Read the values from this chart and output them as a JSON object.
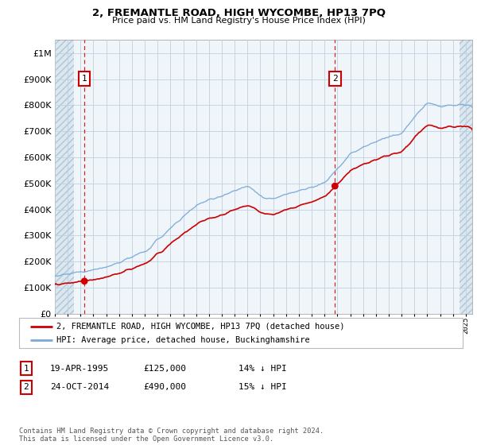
{
  "title1": "2, FREMANTLE ROAD, HIGH WYCOMBE, HP13 7PQ",
  "title2": "Price paid vs. HM Land Registry's House Price Index (HPI)",
  "ylim": [
    0,
    1050000
  ],
  "yticks": [
    0,
    100000,
    200000,
    300000,
    400000,
    500000,
    600000,
    700000,
    800000,
    900000,
    1000000
  ],
  "ytick_labels": [
    "£0",
    "£100K",
    "£200K",
    "£300K",
    "£400K",
    "£500K",
    "£600K",
    "£700K",
    "£800K",
    "£900K",
    "£1M"
  ],
  "sale1_year": 1995.3,
  "sale1_price": 125000,
  "sale2_year": 2014.81,
  "sale2_price": 490000,
  "hpi_color": "#7aa8d8",
  "price_color": "#cc0000",
  "legend_label1": "2, FREMANTLE ROAD, HIGH WYCOMBE, HP13 7PQ (detached house)",
  "legend_label2": "HPI: Average price, detached house, Buckinghamshire",
  "table_row1": [
    "1",
    "19-APR-1995",
    "£125,000",
    "14% ↓ HPI"
  ],
  "table_row2": [
    "2",
    "24-OCT-2014",
    "£490,000",
    "15% ↓ HPI"
  ],
  "footer": "Contains HM Land Registry data © Crown copyright and database right 2024.\nThis data is licensed under the Open Government Licence v3.0.",
  "bg_white": "#ffffff",
  "bg_plot": "#f0f4f8",
  "hatch_bg": "#d8e4ee",
  "grid_color": "#c8d8e8",
  "xlim_start": 1993.0,
  "xlim_end": 2025.5,
  "hatch_left_end": 1994.5,
  "hatch_right_start": 2024.5
}
